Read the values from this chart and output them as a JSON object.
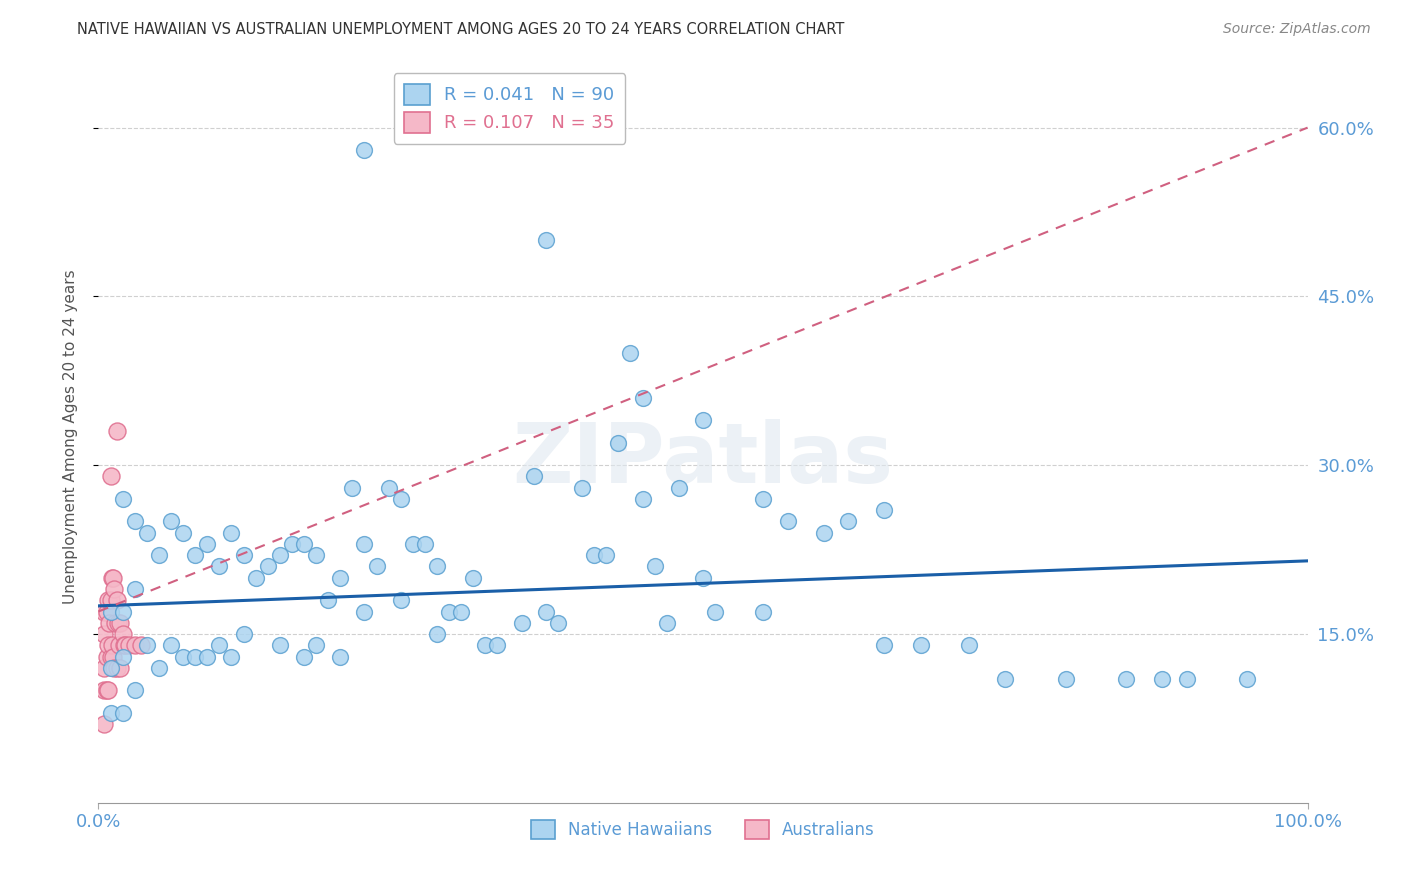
{
  "title": "NATIVE HAWAIIAN VS AUSTRALIAN UNEMPLOYMENT AMONG AGES 20 TO 24 YEARS CORRELATION CHART",
  "source": "Source: ZipAtlas.com",
  "ylabel": "Unemployment Among Ages 20 to 24 years",
  "ytick_vals": [
    0.15,
    0.3,
    0.45,
    0.6
  ],
  "ytick_labels": [
    "15.0%",
    "30.0%",
    "45.0%",
    "60.0%"
  ],
  "xtick_vals": [
    0.0,
    1.0
  ],
  "xtick_labels": [
    "0.0%",
    "100.0%"
  ],
  "xlim": [
    0.0,
    1.0
  ],
  "ylim": [
    0.0,
    0.65
  ],
  "watermark": "ZIPatlas",
  "blue_face_color": "#acd4f0",
  "blue_edge_color": "#5aa0d0",
  "pink_face_color": "#f5b8c8",
  "pink_edge_color": "#e07090",
  "trend_blue_color": "#1a5fa8",
  "trend_pink_color": "#d06080",
  "grid_color": "#d0d0d0",
  "title_color": "#333333",
  "axis_label_color": "#5b9bd5",
  "background_color": "#ffffff",
  "trend_blue_x0": 0.0,
  "trend_blue_y0": 0.175,
  "trend_blue_x1": 1.0,
  "trend_blue_y1": 0.215,
  "trend_pink_x0": 0.0,
  "trend_pink_y0": 0.17,
  "trend_pink_x1": 1.0,
  "trend_pink_y1": 0.6,
  "blue_x": [
    0.01,
    0.01,
    0.01,
    0.02,
    0.02,
    0.02,
    0.02,
    0.03,
    0.03,
    0.03,
    0.04,
    0.04,
    0.05,
    0.05,
    0.06,
    0.06,
    0.07,
    0.07,
    0.08,
    0.08,
    0.09,
    0.09,
    0.1,
    0.1,
    0.11,
    0.11,
    0.12,
    0.12,
    0.13,
    0.14,
    0.15,
    0.15,
    0.16,
    0.17,
    0.17,
    0.18,
    0.18,
    0.19,
    0.2,
    0.2,
    0.21,
    0.22,
    0.22,
    0.23,
    0.24,
    0.25,
    0.25,
    0.26,
    0.27,
    0.28,
    0.28,
    0.29,
    0.3,
    0.31,
    0.32,
    0.33,
    0.35,
    0.36,
    0.37,
    0.38,
    0.4,
    0.41,
    0.42,
    0.43,
    0.45,
    0.46,
    0.47,
    0.48,
    0.5,
    0.51,
    0.55,
    0.57,
    0.6,
    0.62,
    0.65,
    0.68,
    0.72,
    0.75,
    0.8,
    0.85,
    0.88,
    0.9,
    0.22,
    0.37,
    0.44,
    0.45,
    0.5,
    0.55,
    0.65,
    0.95
  ],
  "blue_y": [
    0.17,
    0.12,
    0.08,
    0.27,
    0.17,
    0.13,
    0.08,
    0.25,
    0.19,
    0.1,
    0.24,
    0.14,
    0.22,
    0.12,
    0.25,
    0.14,
    0.24,
    0.13,
    0.22,
    0.13,
    0.23,
    0.13,
    0.21,
    0.14,
    0.24,
    0.13,
    0.22,
    0.15,
    0.2,
    0.21,
    0.22,
    0.14,
    0.23,
    0.23,
    0.13,
    0.22,
    0.14,
    0.18,
    0.2,
    0.13,
    0.28,
    0.23,
    0.17,
    0.21,
    0.28,
    0.27,
    0.18,
    0.23,
    0.23,
    0.21,
    0.15,
    0.17,
    0.17,
    0.2,
    0.14,
    0.14,
    0.16,
    0.29,
    0.17,
    0.16,
    0.28,
    0.22,
    0.22,
    0.32,
    0.27,
    0.21,
    0.16,
    0.28,
    0.2,
    0.17,
    0.17,
    0.25,
    0.24,
    0.25,
    0.14,
    0.14,
    0.14,
    0.11,
    0.11,
    0.11,
    0.11,
    0.11,
    0.58,
    0.5,
    0.4,
    0.36,
    0.34,
    0.27,
    0.26,
    0.11
  ],
  "pink_x": [
    0.005,
    0.005,
    0.005,
    0.005,
    0.005,
    0.007,
    0.007,
    0.007,
    0.008,
    0.008,
    0.008,
    0.009,
    0.01,
    0.01,
    0.01,
    0.011,
    0.011,
    0.012,
    0.012,
    0.013,
    0.013,
    0.014,
    0.015,
    0.015,
    0.016,
    0.017,
    0.018,
    0.018,
    0.02,
    0.021,
    0.022,
    0.025,
    0.03,
    0.035,
    0.015
  ],
  "pink_y": [
    0.17,
    0.15,
    0.12,
    0.1,
    0.07,
    0.17,
    0.13,
    0.1,
    0.18,
    0.14,
    0.1,
    0.16,
    0.29,
    0.18,
    0.13,
    0.2,
    0.14,
    0.2,
    0.13,
    0.19,
    0.12,
    0.16,
    0.18,
    0.12,
    0.16,
    0.14,
    0.16,
    0.12,
    0.15,
    0.14,
    0.14,
    0.14,
    0.14,
    0.14,
    0.33
  ]
}
